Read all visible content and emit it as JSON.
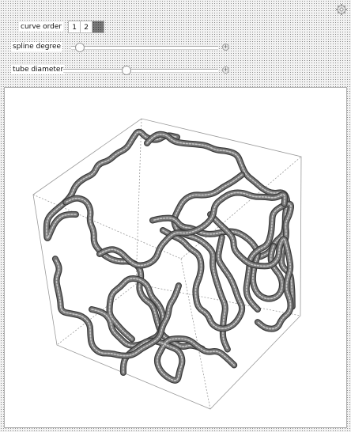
{
  "controls": {
    "curve_order": {
      "label": "curve order",
      "options": [
        "1",
        "2",
        ""
      ],
      "selected_index": 2
    },
    "spline_degree": {
      "label": "spline degree",
      "value_fraction": 0.06
    },
    "tube_diameter": {
      "label": "tube diameter",
      "value_fraction": 0.41
    }
  },
  "icons": {
    "options": "gear-icon",
    "slider_more": "plus-icon"
  },
  "colors": {
    "tube": "#777777",
    "tube_highlight": "#c8c8c8",
    "box_edges": "#9a9a9a"
  }
}
